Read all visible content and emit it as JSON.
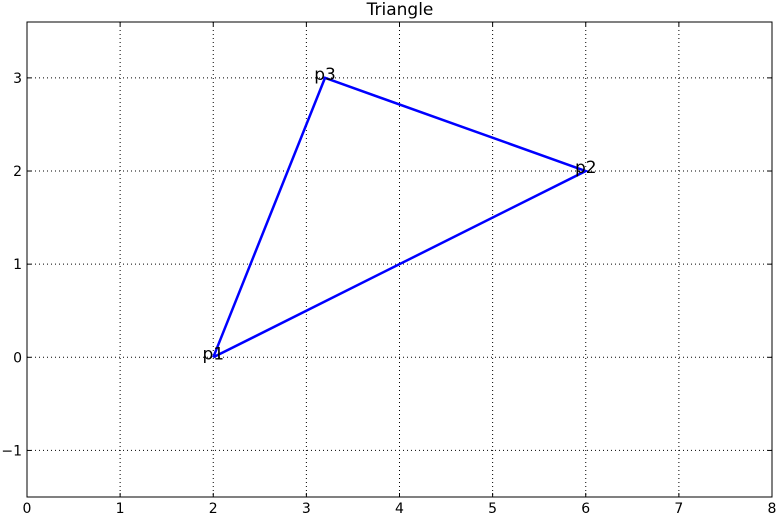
{
  "chart_data": {
    "type": "line",
    "title": "Triangle",
    "xlabel": "",
    "ylabel": "",
    "xlim": [
      0,
      8
    ],
    "ylim": [
      -1.5,
      3.6
    ],
    "xticks": [
      "0",
      "1",
      "2",
      "3",
      "4",
      "5",
      "6",
      "7",
      "8"
    ],
    "yticks": [
      "−1",
      "0",
      "1",
      "2",
      "3"
    ],
    "grid": true,
    "series": [
      {
        "x": [
          2,
          6,
          3.2,
          2
        ],
        "y": [
          0,
          2,
          3,
          0
        ],
        "color": "#0000ff"
      }
    ],
    "annotations": [
      {
        "text": "p1",
        "x": 2,
        "y": 0
      },
      {
        "text": "p2",
        "x": 6,
        "y": 2
      },
      {
        "text": "p3",
        "x": 3.2,
        "y": 3
      }
    ]
  }
}
